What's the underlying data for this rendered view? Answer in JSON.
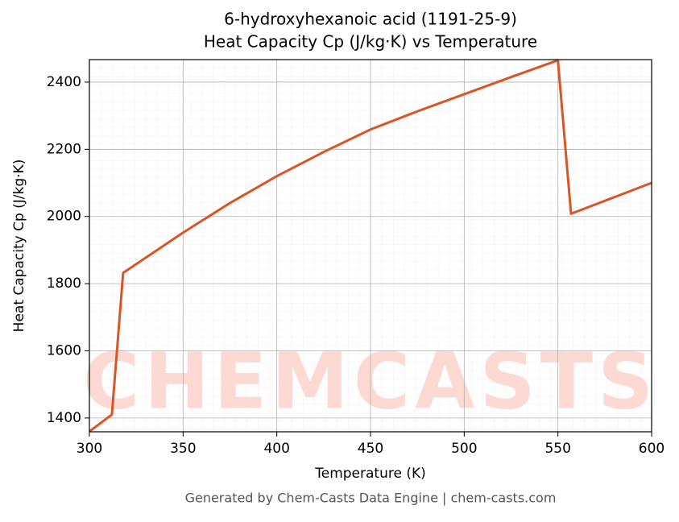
{
  "chart_data": {
    "type": "line",
    "title": "6-hydroxyhexanoic acid (1191-25-9)",
    "subtitle": "Heat Capacity Cp (J/kg·K) vs Temperature",
    "x_label": "Temperature (K)",
    "y_label": "Heat Capacity Cp (J/kg·K)",
    "watermark": "CHEMCASTS",
    "footer": "Generated by Chem-Casts Data Engine | chem-casts.com",
    "x": [
      300,
      312,
      318,
      350,
      375,
      400,
      425,
      450,
      475,
      500,
      525,
      550,
      557,
      600
    ],
    "series": [
      {
        "name": "Cp",
        "color": "#d95525",
        "values": [
          1360,
          1410,
          1832,
          1952,
          2040,
          2120,
          2192,
          2259,
          2313,
          2364,
          2415,
          2465,
          2008,
          2100
        ]
      }
    ],
    "xlim": [
      300,
      600
    ],
    "xticks": [
      300,
      350,
      400,
      450,
      500,
      550,
      600
    ],
    "ylim": [
      1359,
      2467
    ],
    "yticks": [
      1400,
      1600,
      1800,
      2000,
      2200,
      2400
    ],
    "grid": true
  }
}
